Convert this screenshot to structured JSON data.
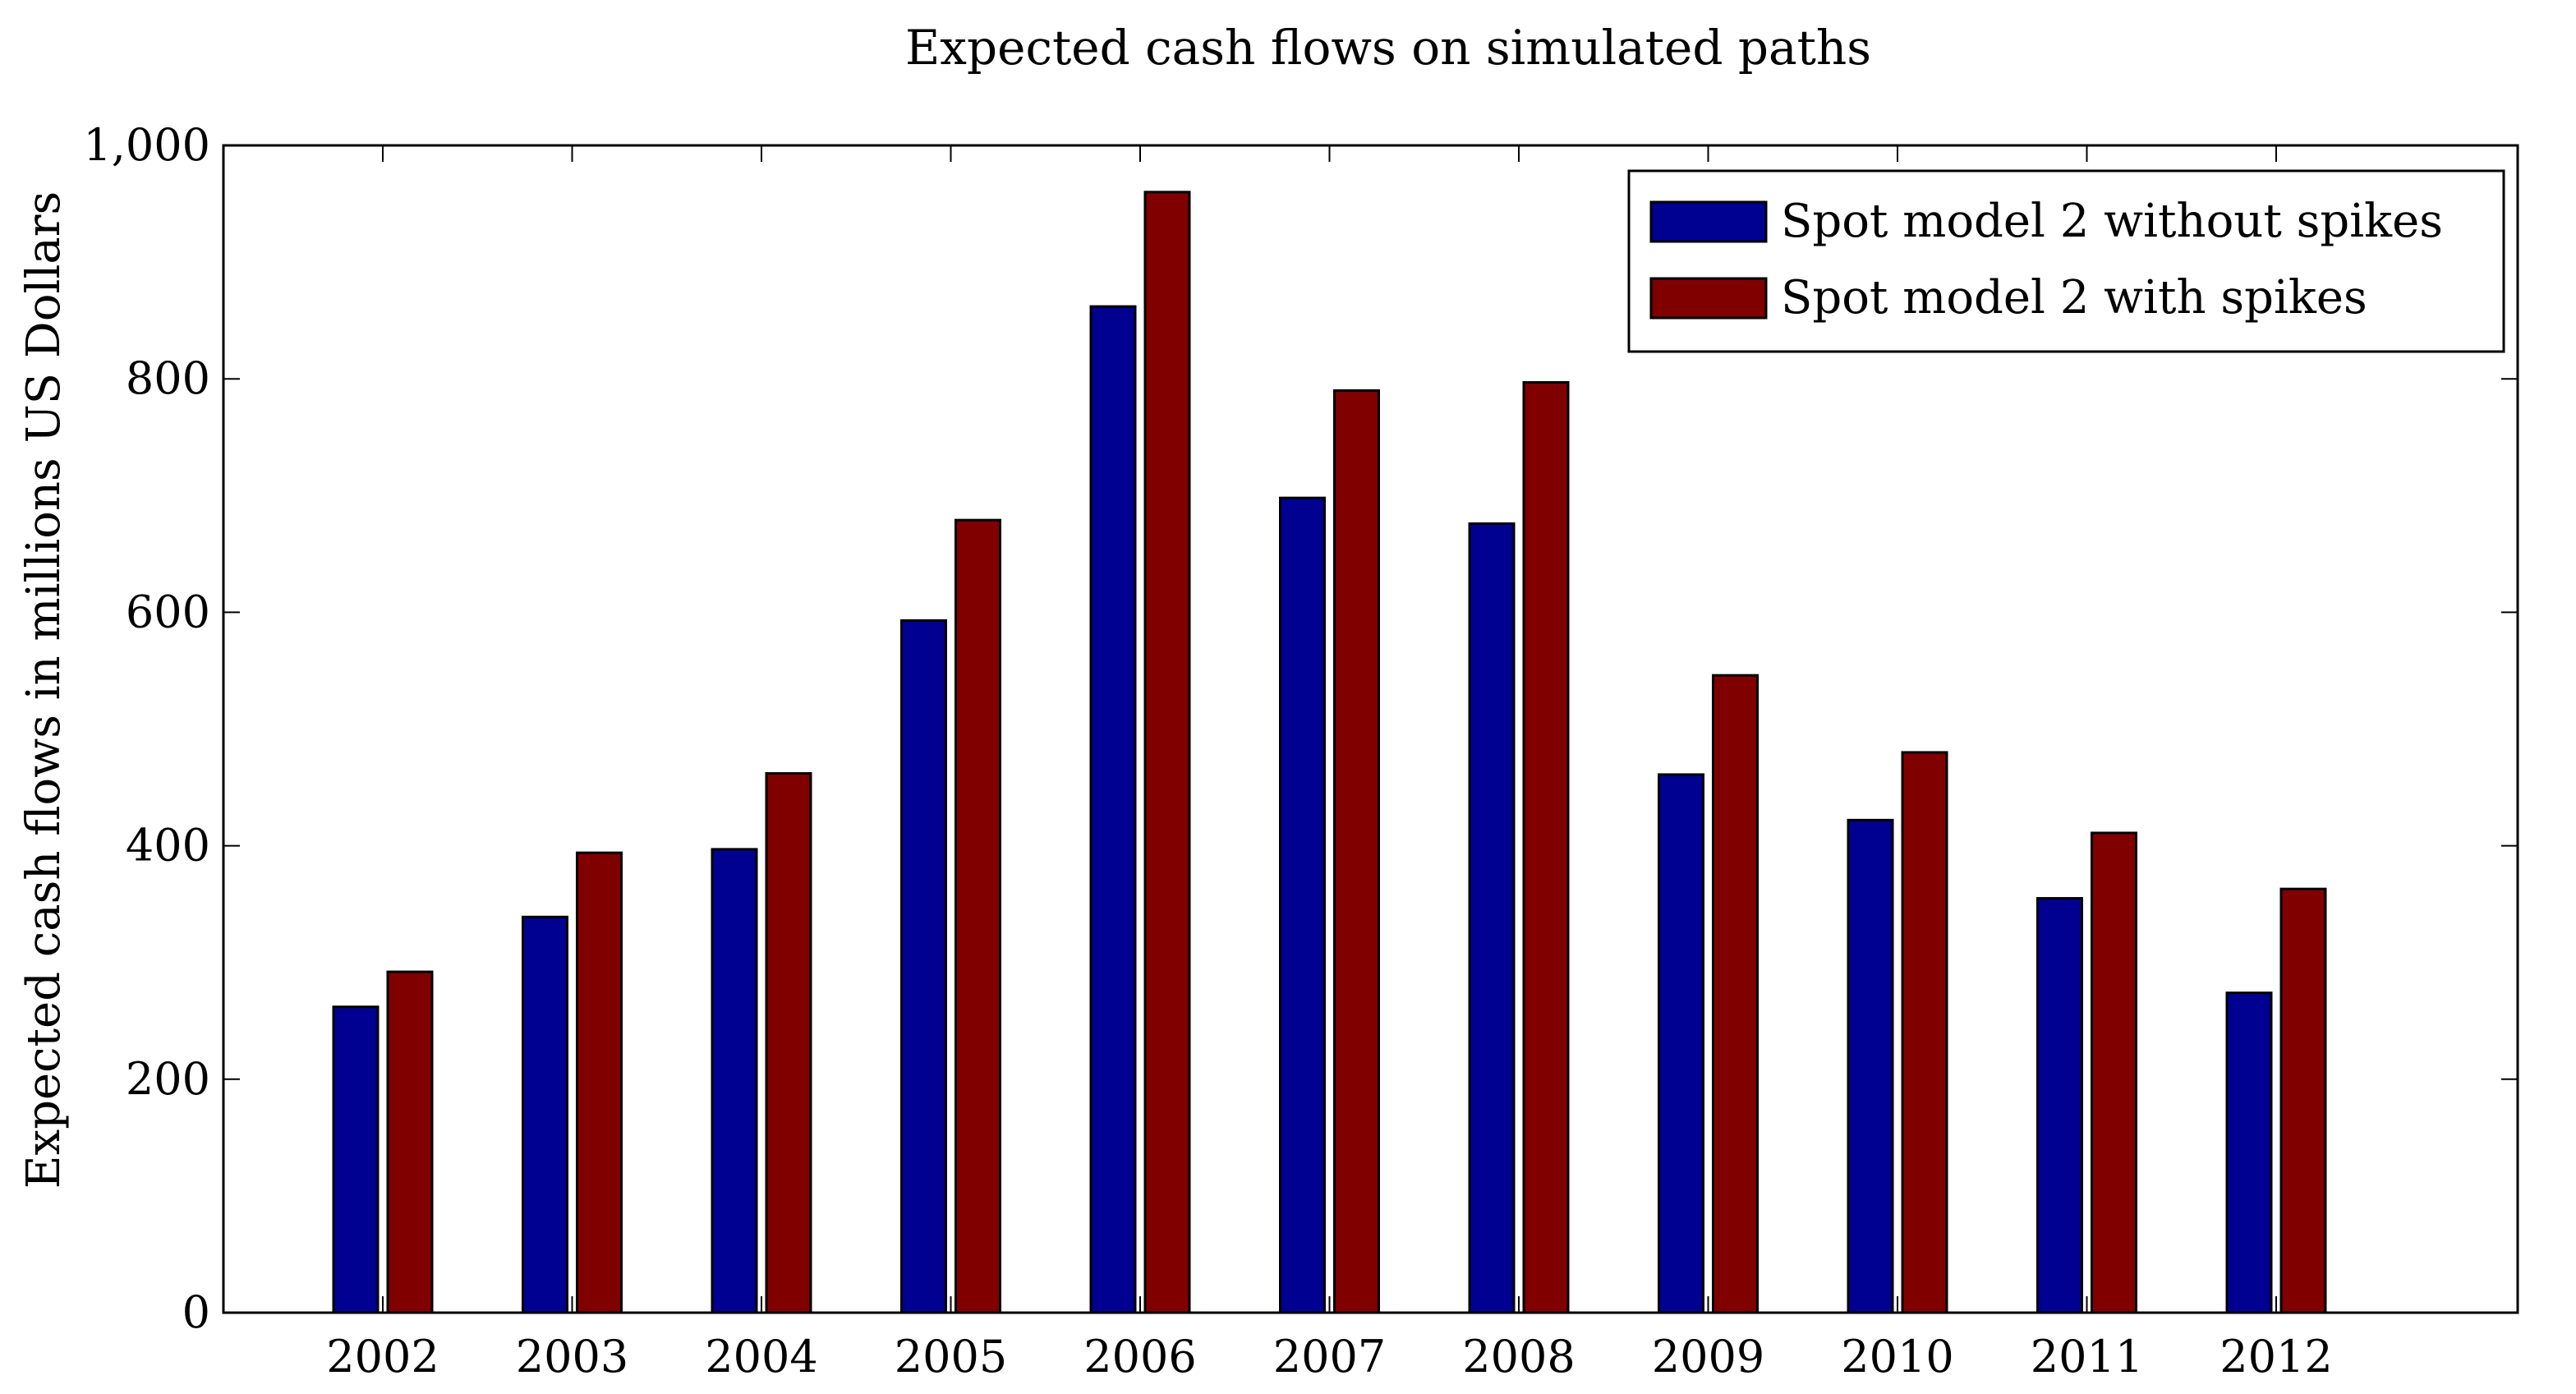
{
  "chart_data": {
    "type": "bar",
    "title": "Expected cash flows on simulated paths",
    "xlabel": "",
    "ylabel": "Expected cash flows in millions US Dollars",
    "categories": [
      "2002",
      "2003",
      "2004",
      "2005",
      "2006",
      "2007",
      "2008",
      "2009",
      "2010",
      "2011",
      "2012"
    ],
    "series": [
      {
        "name": "Spot model 2 without spikes",
        "color": "#000091",
        "values": [
          262,
          339,
          397,
          593,
          862,
          698,
          676,
          461,
          422,
          355,
          274
        ]
      },
      {
        "name": "Spot model 2 with spikes",
        "color": "#800000",
        "values": [
          292,
          394,
          462,
          679,
          960,
          790,
          797,
          546,
          480,
          411,
          363
        ]
      }
    ],
    "ylim": [
      0,
      1000
    ],
    "yticks": [
      0,
      200,
      400,
      600,
      800,
      1000
    ],
    "ytick_labels": [
      "0",
      "200",
      "400",
      "600",
      "800",
      "1,000"
    ],
    "grid": false,
    "legend_position": "top-right"
  }
}
